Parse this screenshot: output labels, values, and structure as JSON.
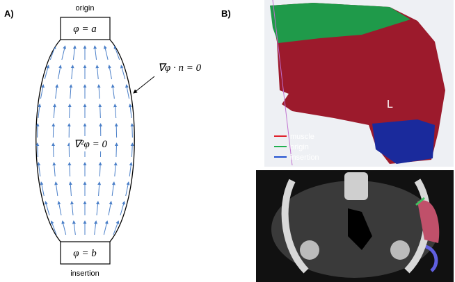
{
  "panel_a": {
    "label": "A)",
    "top_label": "origin",
    "top_condition": "φ = a",
    "boundary_condition": "∇φ · n = 0",
    "equation": "∇²φ = 0",
    "bottom_condition": "φ = b",
    "bottom_label": "insertion"
  },
  "panel_b": {
    "label": "B)",
    "orientation": "L",
    "legend": [
      {
        "name": "muscle",
        "color": "#e0202a"
      },
      {
        "name": "origin",
        "color": "#20b050"
      },
      {
        "name": "insertion",
        "color": "#2050d0"
      }
    ]
  }
}
